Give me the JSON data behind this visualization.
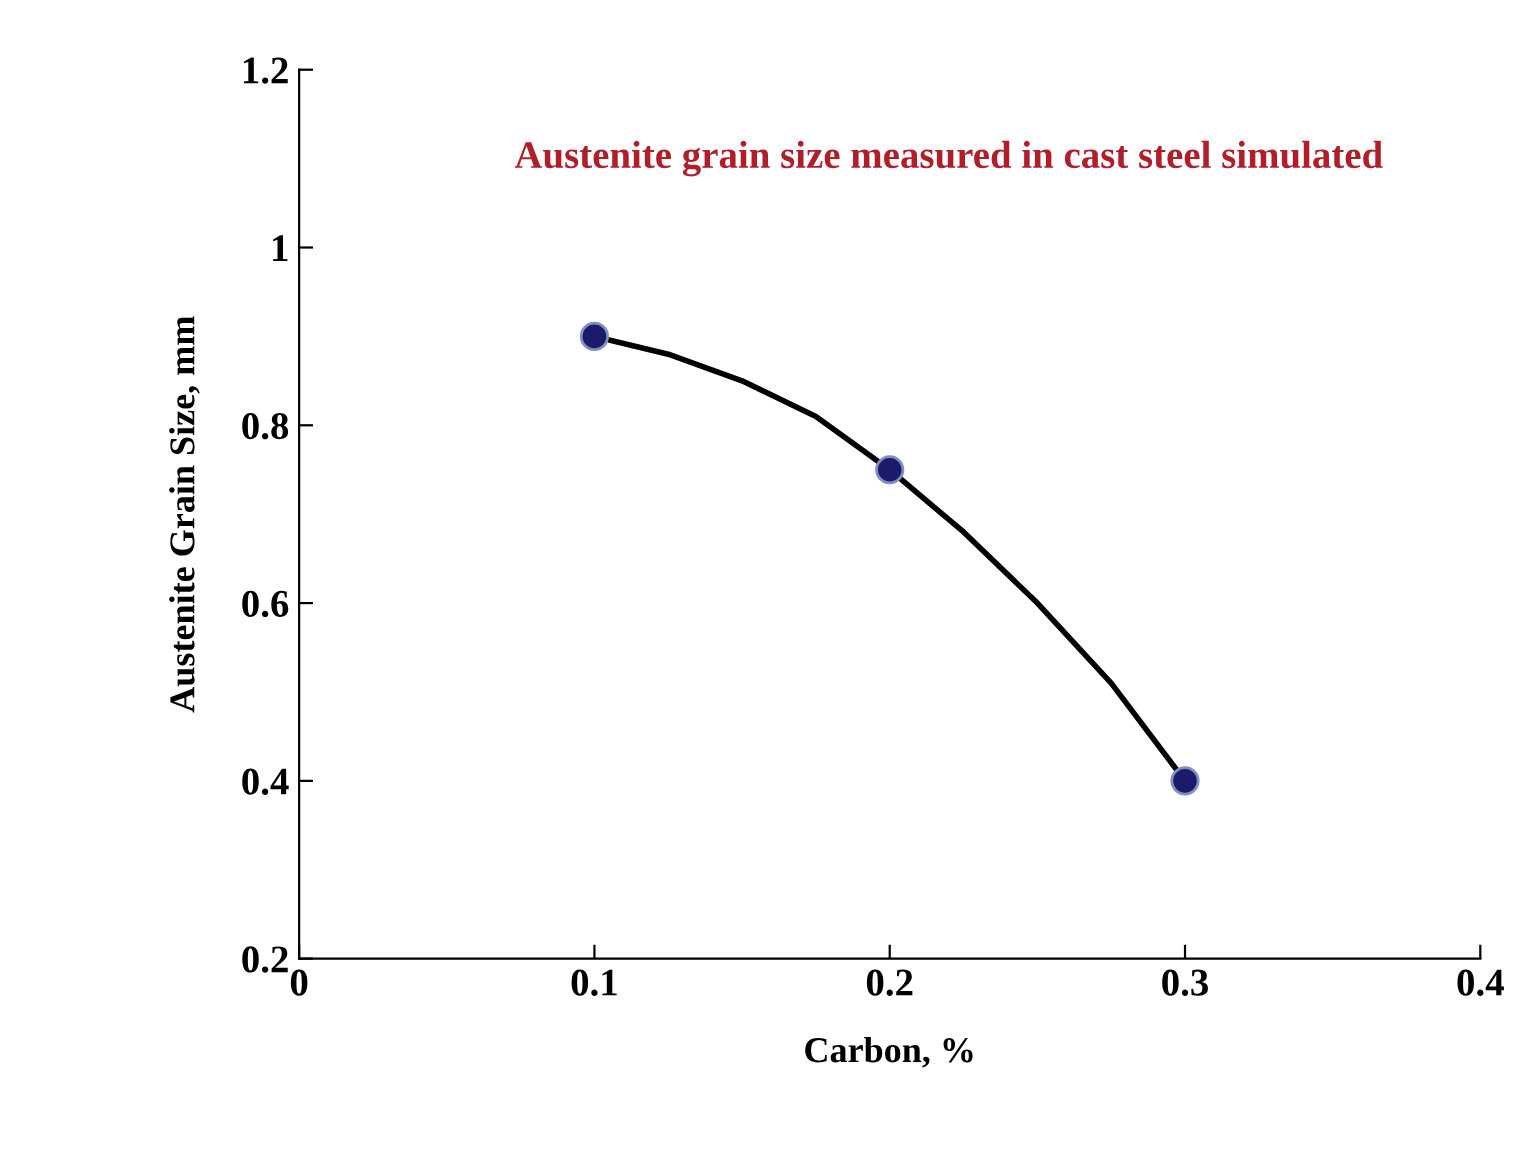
{
  "chart_data": {
    "type": "scatter",
    "xlabel": "Carbon, %",
    "ylabel": "Austenite Grain Size, mm",
    "annotations": [
      "Austenite grain size measured in cast steel simulated"
    ],
    "x": [
      0.1,
      0.2,
      0.3
    ],
    "series": [
      {
        "color": "#1c1a6b",
        "values": [
          0.9,
          0.75,
          0.4
        ],
        "marker": "circle"
      },
      {
        "type": "line",
        "color": "#000000",
        "x": [
          0.1,
          0.125,
          0.15,
          0.175,
          0.2,
          0.225,
          0.25,
          0.275,
          0.3
        ],
        "values": [
          0.9,
          0.88,
          0.85,
          0.81,
          0.75,
          0.68,
          0.6,
          0.51,
          0.4
        ],
        "marker": "none",
        "line_style": "solid"
      }
    ],
    "xlim": [
      0,
      0.4
    ],
    "xticks": [
      0,
      0.1,
      0.2,
      0.3,
      0.4
    ],
    "ylim": [
      0.2,
      1.2
    ],
    "yticks": [
      0.2,
      0.4,
      0.6,
      0.8,
      1,
      1.2
    ],
    "grid": false,
    "legend": false
  }
}
